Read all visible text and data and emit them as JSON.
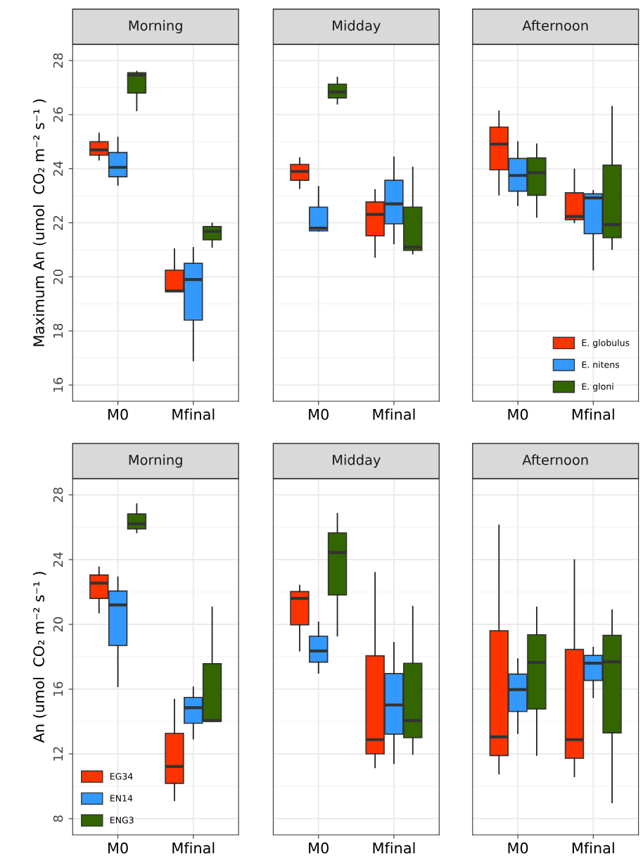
{
  "chart_data": [
    {
      "type": "box",
      "title": "Morning",
      "ylabel": "Maximum An (umol  CO₂ m⁻² s⁻¹ )",
      "categories": [
        "M0",
        "Mfinal"
      ],
      "ylim": [
        15.4,
        28.6
      ],
      "yticks": [
        16,
        18,
        20,
        22,
        24,
        26,
        28
      ],
      "grid": true,
      "legend": false,
      "series": [
        {
          "color": "#ff3300",
          "boxes": [
            {
              "low": 24.33,
              "q1": 24.5,
              "median": 24.7,
              "q3": 25.0,
              "high": 25.31
            },
            {
              "low": 19.45,
              "q1": 19.45,
              "median": 19.48,
              "q3": 20.25,
              "high": 21.03
            }
          ]
        },
        {
          "color": "#3399ff",
          "boxes": [
            {
              "low": 23.4,
              "q1": 23.7,
              "median": 24.05,
              "q3": 24.6,
              "high": 25.16
            },
            {
              "low": 16.9,
              "q1": 18.4,
              "median": 19.9,
              "q3": 20.5,
              "high": 21.08
            }
          ]
        },
        {
          "color": "#336600",
          "boxes": [
            {
              "low": 26.15,
              "q1": 26.8,
              "median": 27.46,
              "q3": 27.55,
              "high": 27.6
            },
            {
              "low": 21.1,
              "q1": 21.37,
              "median": 21.68,
              "q3": 21.86,
              "high": 21.98
            }
          ]
        }
      ]
    },
    {
      "type": "box",
      "title": "Midday",
      "categories": [
        "M0",
        "Mfinal"
      ],
      "ylim": [
        15.4,
        28.6
      ],
      "yticks": [
        16,
        18,
        20,
        22,
        24,
        26,
        28
      ],
      "tick_labels": "x",
      "grid": true,
      "legend": false,
      "series": [
        {
          "color": "#ff3300",
          "boxes": [
            {
              "low": 23.27,
              "q1": 23.57,
              "median": 23.9,
              "q3": 24.16,
              "high": 24.4
            },
            {
              "low": 20.73,
              "q1": 21.52,
              "median": 22.31,
              "q3": 22.77,
              "high": 23.22
            }
          ]
        },
        {
          "color": "#3399ff",
          "boxes": [
            {
              "low": 21.7,
              "q1": 21.7,
              "median": 21.8,
              "q3": 22.58,
              "high": 23.34
            },
            {
              "low": 21.23,
              "q1": 21.96,
              "median": 22.7,
              "q3": 23.57,
              "high": 24.43
            }
          ]
        },
        {
          "color": "#336600",
          "boxes": [
            {
              "low": 26.4,
              "q1": 26.62,
              "median": 26.84,
              "q3": 27.13,
              "high": 27.38
            },
            {
              "low": 20.85,
              "q1": 20.98,
              "median": 21.1,
              "q3": 22.58,
              "high": 24.05
            }
          ]
        }
      ]
    },
    {
      "type": "box",
      "title": "Afternoon",
      "categories": [
        "M0",
        "Mfinal"
      ],
      "ylim": [
        15.4,
        28.6
      ],
      "yticks": [
        16,
        18,
        20,
        22,
        24,
        26,
        28
      ],
      "tick_labels": "x",
      "grid": true,
      "legend": "bottom right",
      "series": [
        {
          "name": "E. globulus",
          "color": "#ff3300",
          "boxes": [
            {
              "low": 23.03,
              "q1": 23.96,
              "median": 24.91,
              "q3": 25.54,
              "high": 26.13
            },
            {
              "low": 22.01,
              "q1": 22.11,
              "median": 22.23,
              "q3": 23.11,
              "high": 23.98
            }
          ]
        },
        {
          "name": "E. nitens",
          "color": "#3399ff",
          "boxes": [
            {
              "low": 22.64,
              "q1": 23.17,
              "median": 23.75,
              "q3": 24.38,
              "high": 24.99
            },
            {
              "low": 20.26,
              "q1": 21.6,
              "median": 22.92,
              "q3": 23.07,
              "high": 23.19
            }
          ]
        },
        {
          "name": "E. gloni",
          "color": "#336600",
          "boxes": [
            {
              "low": 22.21,
              "q1": 23.02,
              "median": 23.85,
              "q3": 24.4,
              "high": 24.91
            },
            {
              "low": 21.02,
              "q1": 21.45,
              "median": 21.93,
              "q3": 24.13,
              "high": 26.3
            }
          ]
        }
      ]
    },
    {
      "type": "box",
      "title": "Morning",
      "ylabel": "An (umol  CO₂ m⁻² s⁻¹ )",
      "categories": [
        "M0",
        "Mfinal"
      ],
      "ylim": [
        7.0,
        29.0
      ],
      "yticks": [
        8,
        12,
        16,
        20,
        24,
        28
      ],
      "grid": true,
      "legend": "bottom left",
      "series": [
        {
          "name": "EG34",
          "color": "#ff3300",
          "boxes": [
            {
              "low": 20.71,
              "q1": 21.6,
              "median": 22.55,
              "q3": 23.05,
              "high": 23.54
            },
            {
              "low": 9.13,
              "q1": 10.18,
              "median": 11.22,
              "q3": 13.27,
              "high": 15.36
            }
          ]
        },
        {
          "name": "EN14",
          "color": "#3399ff",
          "boxes": [
            {
              "low": 16.17,
              "q1": 18.7,
              "median": 21.2,
              "q3": 22.06,
              "high": 22.92
            },
            {
              "low": 12.93,
              "q1": 13.89,
              "median": 14.85,
              "q3": 15.49,
              "high": 16.12
            }
          ]
        },
        {
          "name": "ENG3",
          "color": "#336600",
          "boxes": [
            {
              "low": 25.67,
              "q1": 25.9,
              "median": 26.21,
              "q3": 26.82,
              "high": 27.44
            },
            {
              "low": 14.0,
              "q1": 14.01,
              "median": 14.06,
              "q3": 17.57,
              "high": 21.06
            }
          ]
        }
      ]
    },
    {
      "type": "box",
      "title": "Midday",
      "categories": [
        "M0",
        "Mfinal"
      ],
      "ylim": [
        7.0,
        29.0
      ],
      "yticks": [
        8,
        12,
        16,
        20,
        24,
        28
      ],
      "tick_labels": "x",
      "grid": true,
      "legend": false,
      "series": [
        {
          "color": "#ff3300",
          "boxes": [
            {
              "low": 18.36,
              "q1": 19.97,
              "median": 21.6,
              "q3": 22.03,
              "high": 22.41
            },
            {
              "low": 11.16,
              "q1": 12.0,
              "median": 12.88,
              "q3": 18.06,
              "high": 23.2
            }
          ]
        },
        {
          "color": "#3399ff",
          "boxes": [
            {
              "low": 17.0,
              "q1": 17.67,
              "median": 18.36,
              "q3": 19.27,
              "high": 20.14
            },
            {
              "low": 11.41,
              "q1": 13.22,
              "median": 15.02,
              "q3": 16.96,
              "high": 18.87
            }
          ]
        },
        {
          "color": "#336600",
          "boxes": [
            {
              "low": 19.29,
              "q1": 21.82,
              "median": 24.44,
              "q3": 25.65,
              "high": 26.84
            },
            {
              "low": 11.98,
              "q1": 13.0,
              "median": 14.06,
              "q3": 17.59,
              "high": 21.1
            }
          ]
        }
      ]
    },
    {
      "type": "box",
      "title": "Afternoon",
      "categories": [
        "M0",
        "Mfinal"
      ],
      "ylim": [
        7.0,
        29.0
      ],
      "yticks": [
        8,
        12,
        16,
        20,
        24,
        28
      ],
      "tick_labels": "x",
      "grid": true,
      "legend": false,
      "series": [
        {
          "color": "#ff3300",
          "boxes": [
            {
              "low": 10.77,
              "q1": 11.9,
              "median": 13.05,
              "q3": 19.6,
              "high": 26.12
            },
            {
              "low": 10.6,
              "q1": 11.73,
              "median": 12.88,
              "q3": 18.45,
              "high": 23.98
            }
          ]
        },
        {
          "color": "#3399ff",
          "boxes": [
            {
              "low": 13.27,
              "q1": 14.62,
              "median": 15.97,
              "q3": 16.93,
              "high": 17.86
            },
            {
              "low": 15.49,
              "q1": 16.54,
              "median": 17.6,
              "q3": 18.08,
              "high": 18.58
            }
          ]
        },
        {
          "color": "#336600",
          "boxes": [
            {
              "low": 11.92,
              "q1": 14.77,
              "median": 17.65,
              "q3": 19.36,
              "high": 21.06
            },
            {
              "low": 9.0,
              "q1": 13.3,
              "median": 17.69,
              "q3": 19.32,
              "high": 20.89
            }
          ]
        }
      ]
    }
  ]
}
